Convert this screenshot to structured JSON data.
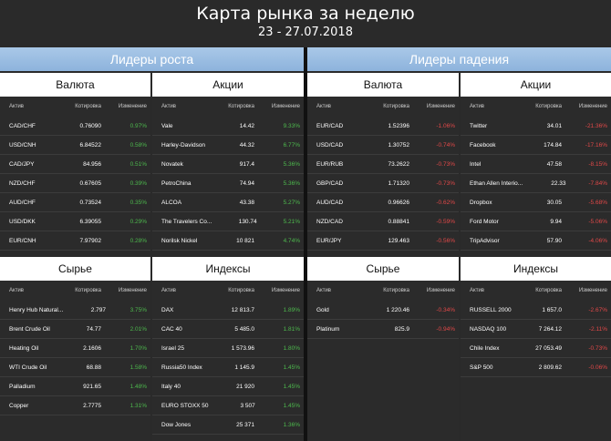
{
  "title": "Карта рынка за неделю",
  "subtitle": "23 - 27.07.2018",
  "left_header": "Лидеры роста",
  "right_header": "Лидеры падения",
  "columns": {
    "asset": "Актив",
    "quote": "Котировка",
    "change": "Изменение"
  },
  "gainers": {
    "currency": {
      "title": "Валюта",
      "rows": [
        {
          "name": "CAD/CHF",
          "quote": "0.76090",
          "change": "0.97%"
        },
        {
          "name": "USD/CNH",
          "quote": "6.84522",
          "change": "0.58%"
        },
        {
          "name": "CAD/JPY",
          "quote": "84.956",
          "change": "0.51%"
        },
        {
          "name": "NZD/CHF",
          "quote": "0.67605",
          "change": "0.39%"
        },
        {
          "name": "AUD/CHF",
          "quote": "0.73524",
          "change": "0.35%"
        },
        {
          "name": "USD/DKK",
          "quote": "6.39055",
          "change": "0.29%"
        },
        {
          "name": "EUR/CNH",
          "quote": "7.97902",
          "change": "0.28%"
        }
      ]
    },
    "stocks": {
      "title": "Акции",
      "rows": [
        {
          "name": "Vale",
          "quote": "14.42",
          "change": "9.33%"
        },
        {
          "name": "Harley-Davidson",
          "quote": "44.32",
          "change": "6.77%"
        },
        {
          "name": "Novatek",
          "quote": "917.4",
          "change": "5.36%"
        },
        {
          "name": "PetroChina",
          "quote": "74.94",
          "change": "5.36%"
        },
        {
          "name": "ALCOA",
          "quote": "43.38",
          "change": "5.27%"
        },
        {
          "name": "The Travelers Co...",
          "quote": "130.74",
          "change": "5.21%"
        },
        {
          "name": "Norilsk Nickel",
          "quote": "10 821",
          "change": "4.74%"
        }
      ]
    },
    "commodities": {
      "title": "Сырье",
      "rows": [
        {
          "name": "Henry Hub Natural...",
          "quote": "2.797",
          "change": "3.75%"
        },
        {
          "name": "Brent Crude Oil",
          "quote": "74.77",
          "change": "2.01%"
        },
        {
          "name": "Heating Oil",
          "quote": "2.1606",
          "change": "1.70%"
        },
        {
          "name": "WTI Crude Oil",
          "quote": "68.88",
          "change": "1.58%"
        },
        {
          "name": "Palladium",
          "quote": "921.65",
          "change": "1.48%"
        },
        {
          "name": "Copper",
          "quote": "2.7775",
          "change": "1.31%"
        }
      ]
    },
    "indices": {
      "title": "Индексы",
      "rows": [
        {
          "name": "DAX",
          "quote": "12 813.7",
          "change": "1.89%"
        },
        {
          "name": "CAC 40",
          "quote": "5 485.0",
          "change": "1.81%"
        },
        {
          "name": "Israel 25",
          "quote": "1 573.96",
          "change": "1.80%"
        },
        {
          "name": "Russia50 Index",
          "quote": "1 145.9",
          "change": "1.45%"
        },
        {
          "name": "Italy 40",
          "quote": "21 920",
          "change": "1.45%"
        },
        {
          "name": "EURO STOXX 50",
          "quote": "3 507",
          "change": "1.45%"
        },
        {
          "name": "Dow Jones",
          "quote": "25 371",
          "change": "1.36%"
        }
      ]
    }
  },
  "losers": {
    "currency": {
      "title": "Валюта",
      "rows": [
        {
          "name": "EUR/CAD",
          "quote": "1.52396",
          "change": "-1.06%"
        },
        {
          "name": "USD/CAD",
          "quote": "1.30752",
          "change": "-0.74%"
        },
        {
          "name": "EUR/RUB",
          "quote": "73.2622",
          "change": "-0.73%"
        },
        {
          "name": "GBP/CAD",
          "quote": "1.71320",
          "change": "-0.73%"
        },
        {
          "name": "AUD/CAD",
          "quote": "0.96626",
          "change": "-0.62%"
        },
        {
          "name": "NZD/CAD",
          "quote": "0.88841",
          "change": "-0.59%"
        },
        {
          "name": "EUR/JPY",
          "quote": "129.463",
          "change": "-0.56%"
        }
      ]
    },
    "stocks": {
      "title": "Акции",
      "rows": [
        {
          "name": "Twitter",
          "quote": "34.01",
          "change": "-21.36%"
        },
        {
          "name": "Facebook",
          "quote": "174.84",
          "change": "-17.16%"
        },
        {
          "name": "Intel",
          "quote": "47.58",
          "change": "-8.15%"
        },
        {
          "name": "Ethan Allen Interio...",
          "quote": "22.33",
          "change": "-7.84%"
        },
        {
          "name": "Dropbox",
          "quote": "30.05",
          "change": "-5.68%"
        },
        {
          "name": "Ford Motor",
          "quote": "9.94",
          "change": "-5.06%"
        },
        {
          "name": "TripAdvisor",
          "quote": "57.90",
          "change": "-4.06%"
        }
      ]
    },
    "commodities": {
      "title": "Сырье",
      "rows": [
        {
          "name": "Gold",
          "quote": "1 220.46",
          "change": "-0.34%"
        },
        {
          "name": "Platinum",
          "quote": "825.9",
          "change": "-0.94%"
        }
      ]
    },
    "indices": {
      "title": "Индексы",
      "rows": [
        {
          "name": "RUSSELL 2000",
          "quote": "1 657.0",
          "change": "-2.67%"
        },
        {
          "name": "NASDAQ 100",
          "quote": "7 264.12",
          "change": "-2.11%"
        },
        {
          "name": "Chile Index",
          "quote": "27 053.49",
          "change": "-0.73%"
        },
        {
          "name": "S&P 500",
          "quote": "2 809.62",
          "change": "-0.06%"
        }
      ]
    }
  },
  "colors": {
    "positive": "#4db84d",
    "negative": "#e04848",
    "bar": "#9bbde2"
  }
}
